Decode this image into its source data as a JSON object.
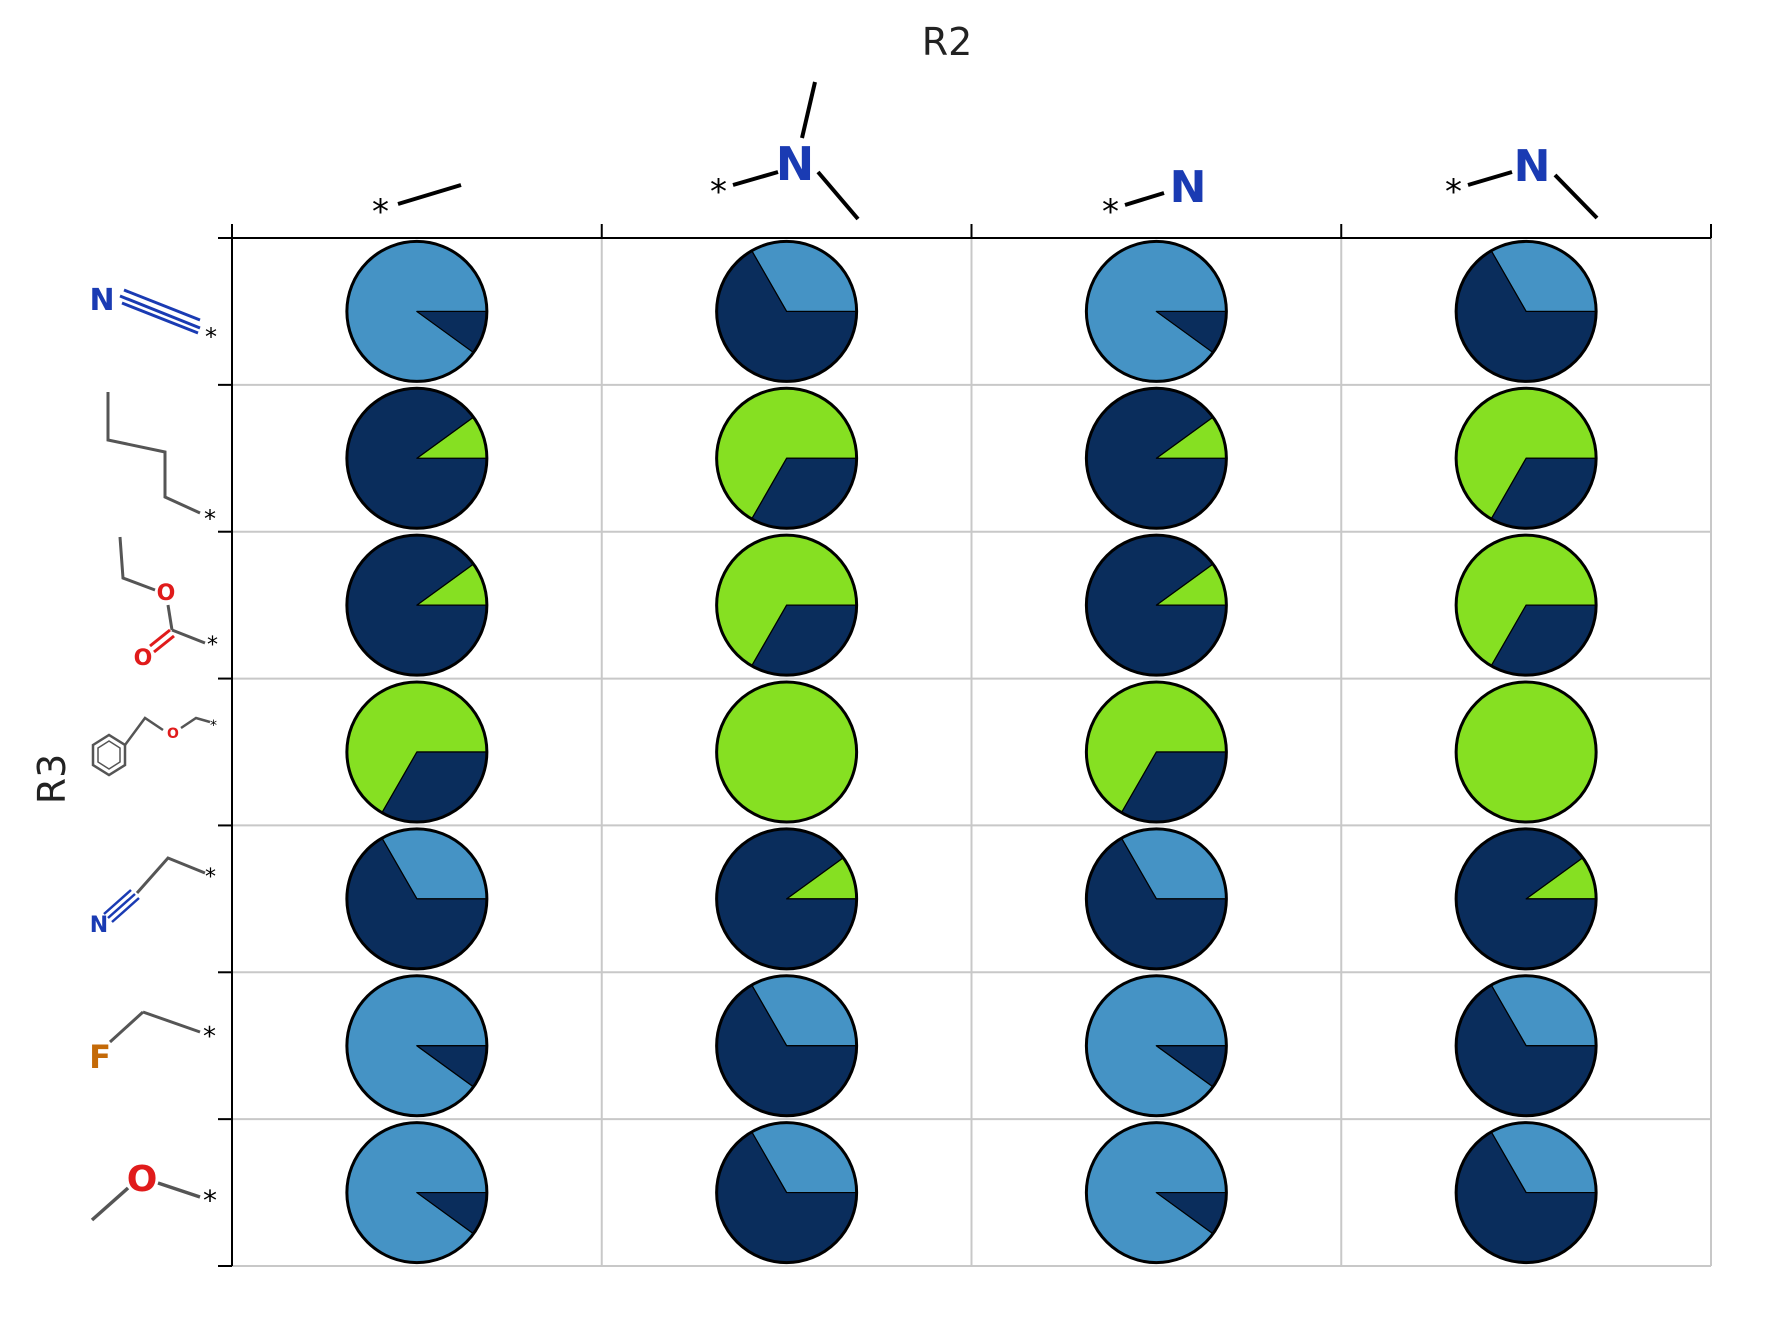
{
  "chart_data": {
    "type": "pie",
    "title": "",
    "xlabel": "R2",
    "ylabel": "R3",
    "grid": true,
    "colors": {
      "dark_navy": "#0a2d5c",
      "light_blue": "#4593c5",
      "lime": "#86e022"
    },
    "col_labels": [
      {
        "structure": "ethyl",
        "atoms": []
      },
      {
        "structure": "dimethylamino",
        "atoms": [
          "N"
        ]
      },
      {
        "structure": "amino",
        "atoms": [
          "N"
        ]
      },
      {
        "structure": "methylamino",
        "atoms": [
          "N"
        ]
      }
    ],
    "row_labels": [
      {
        "structure": "cyanide",
        "atoms": [
          "N"
        ]
      },
      {
        "structure": "n-butyl",
        "atoms": []
      },
      {
        "structure": "ethyl ester",
        "atoms": [
          "O",
          "O"
        ]
      },
      {
        "structure": "benzyloxymethyl",
        "atoms": [
          "O"
        ]
      },
      {
        "structure": "cyanomethyl",
        "atoms": [
          "N"
        ]
      },
      {
        "structure": "fluoromethyl",
        "atoms": [
          "F"
        ]
      },
      {
        "structure": "methoxy",
        "atoms": [
          "O"
        ]
      }
    ],
    "grid_values": [
      [
        {
          "light_blue": 0.9,
          "dark_navy": 0.1
        },
        {
          "light_blue": 0.333,
          "dark_navy": 0.667
        },
        {
          "light_blue": 0.9,
          "dark_navy": 0.1
        },
        {
          "light_blue": 0.333,
          "dark_navy": 0.667
        }
      ],
      [
        {
          "dark_navy": 0.9,
          "lime": 0.1
        },
        {
          "dark_navy": 0.333,
          "lime": 0.667
        },
        {
          "dark_navy": 0.9,
          "lime": 0.1
        },
        {
          "dark_navy": 0.333,
          "lime": 0.667
        }
      ],
      [
        {
          "dark_navy": 0.9,
          "lime": 0.1
        },
        {
          "dark_navy": 0.333,
          "lime": 0.667
        },
        {
          "dark_navy": 0.9,
          "lime": 0.1
        },
        {
          "dark_navy": 0.333,
          "lime": 0.667
        }
      ],
      [
        {
          "dark_navy": 0.333,
          "lime": 0.667
        },
        {
          "lime": 1.0
        },
        {
          "dark_navy": 0.333,
          "lime": 0.667
        },
        {
          "lime": 1.0
        }
      ],
      [
        {
          "light_blue": 0.333,
          "dark_navy": 0.667
        },
        {
          "dark_navy": 0.9,
          "lime": 0.1
        },
        {
          "light_blue": 0.333,
          "dark_navy": 0.667
        },
        {
          "dark_navy": 0.9,
          "lime": 0.1
        }
      ],
      [
        {
          "light_blue": 0.9,
          "dark_navy": 0.1
        },
        {
          "light_blue": 0.333,
          "dark_navy": 0.667
        },
        {
          "light_blue": 0.9,
          "dark_navy": 0.1
        },
        {
          "light_blue": 0.333,
          "dark_navy": 0.667
        }
      ],
      [
        {
          "light_blue": 0.9,
          "dark_navy": 0.1
        },
        {
          "light_blue": 0.333,
          "dark_navy": 0.667
        },
        {
          "light_blue": 0.9,
          "dark_navy": 0.1
        },
        {
          "light_blue": 0.333,
          "dark_navy": 0.667
        }
      ]
    ]
  }
}
